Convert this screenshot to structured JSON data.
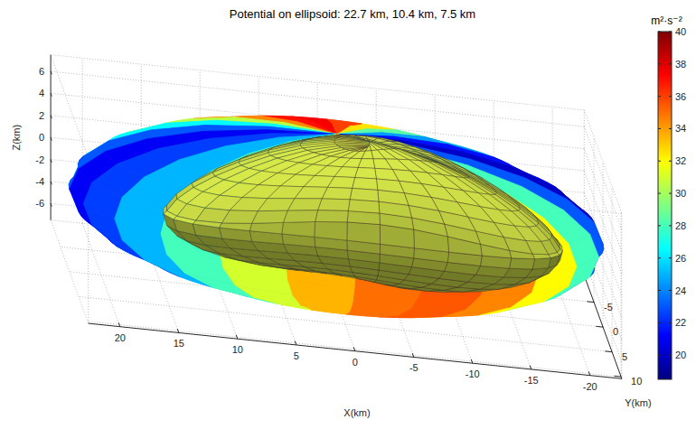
{
  "chart_data": {
    "type": "surface3d",
    "title": "Potential on ellipsoid: 22.7 km, 10.4 km, 7.5 km",
    "x_label": "X(km)",
    "y_label": "Y(km)",
    "z_label": "Z(km)",
    "ellipsoid_semi_axes": [
      22.7,
      10.4,
      7.5
    ],
    "potential": {
      "longitudes": [
        0,
        15,
        30,
        45,
        60,
        75,
        90,
        105,
        120,
        135,
        150,
        165,
        180,
        195,
        210,
        225,
        240,
        255,
        270,
        285,
        300,
        315,
        330,
        345
      ],
      "values": [
        21,
        22.5,
        25,
        28,
        31,
        33.5,
        35,
        35.5,
        34.5,
        32,
        28,
        23,
        20,
        21.5,
        24.5,
        28.5,
        32.5,
        36,
        37.5,
        37,
        34.5,
        30.5,
        26.5,
        23
      ]
    },
    "xlim": [
      -22.7,
      22.7
    ],
    "ylim": [
      -10.4,
      10.4
    ],
    "zlim": [
      -7.5,
      7.5
    ],
    "xticks": [
      -20,
      -15,
      -10,
      -5,
      0,
      5,
      10,
      15,
      20
    ],
    "yticks": [
      -5,
      0,
      5,
      10
    ],
    "zticks": [
      -6,
      -4,
      -2,
      0,
      2,
      4,
      6
    ],
    "colorbar": {
      "label": "m²·s⁻²",
      "range": [
        18.5,
        40
      ],
      "ticks": [
        20,
        22,
        24,
        26,
        28,
        30,
        32,
        34,
        36,
        38,
        40
      ]
    },
    "grid": true
  }
}
